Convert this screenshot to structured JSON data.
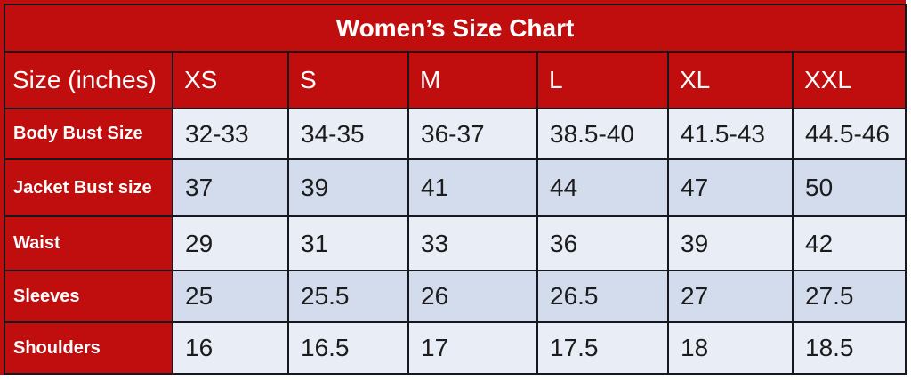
{
  "title": "Women’s Size Chart",
  "chart_data": {
    "type": "table",
    "title": "Women’s Size Chart",
    "columns": [
      "Size (inches)",
      "XS",
      "S",
      "M",
      "L",
      "XL",
      "XXL"
    ],
    "rows": [
      [
        "Body Bust Size",
        "32-33",
        "34-35",
        "36-37",
        "38.5-40",
        "41.5-43",
        "44.5-46"
      ],
      [
        "Jacket Bust size",
        "37",
        "39",
        "41",
        "44",
        "47",
        "50"
      ],
      [
        "Waist",
        "29",
        "31",
        "33",
        "36",
        "39",
        "42"
      ],
      [
        "Sleeves",
        "25",
        "25.5",
        "26",
        "26.5",
        "27",
        "27.5"
      ],
      [
        "Shoulders",
        "16",
        "16.5",
        "17",
        "17.5",
        "18",
        "18.5"
      ]
    ]
  },
  "colors": {
    "red": "#c00e0e",
    "row_light": "#e9edf6",
    "row_dark": "#d3dcec",
    "border": "#17171e",
    "text_dark": "#1c1c1c",
    "text_light": "#ffffff",
    "page_bg": "#ffffff"
  }
}
